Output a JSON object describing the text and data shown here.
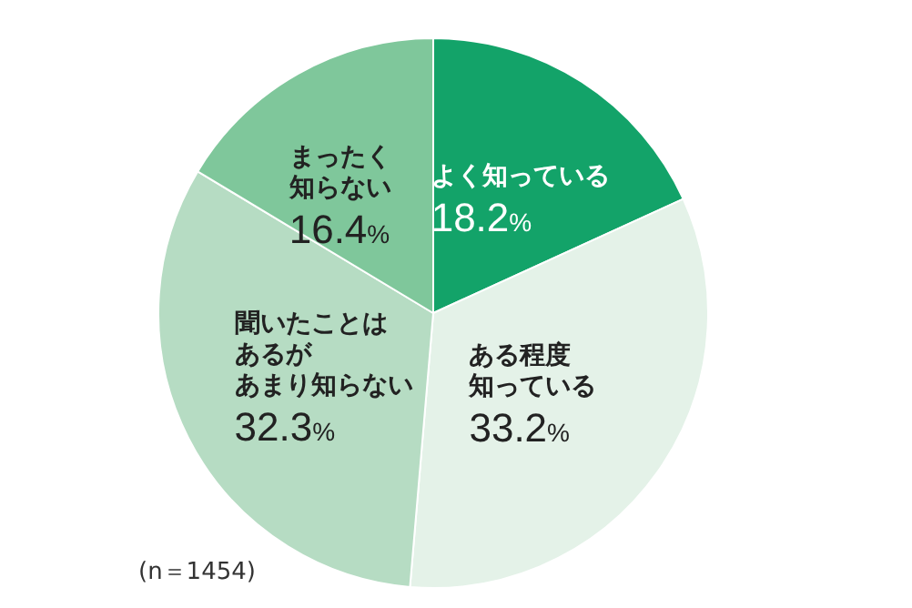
{
  "chart_data": {
    "type": "pie",
    "categories": [
      "よく知っている",
      "ある程度知っている",
      "聞いたことはあるがあまり知らない",
      "まったく知らない"
    ],
    "values": [
      18.2,
      33.2,
      32.3,
      16.4
    ],
    "value_labels": [
      "18.2%",
      "33.2%",
      "32.3%",
      "16.4%"
    ],
    "colors": [
      "#13a369",
      "#e4f2e8",
      "#b6dcc3",
      "#7fc79b"
    ],
    "annotations": [
      "(n＝1454)"
    ]
  }
}
